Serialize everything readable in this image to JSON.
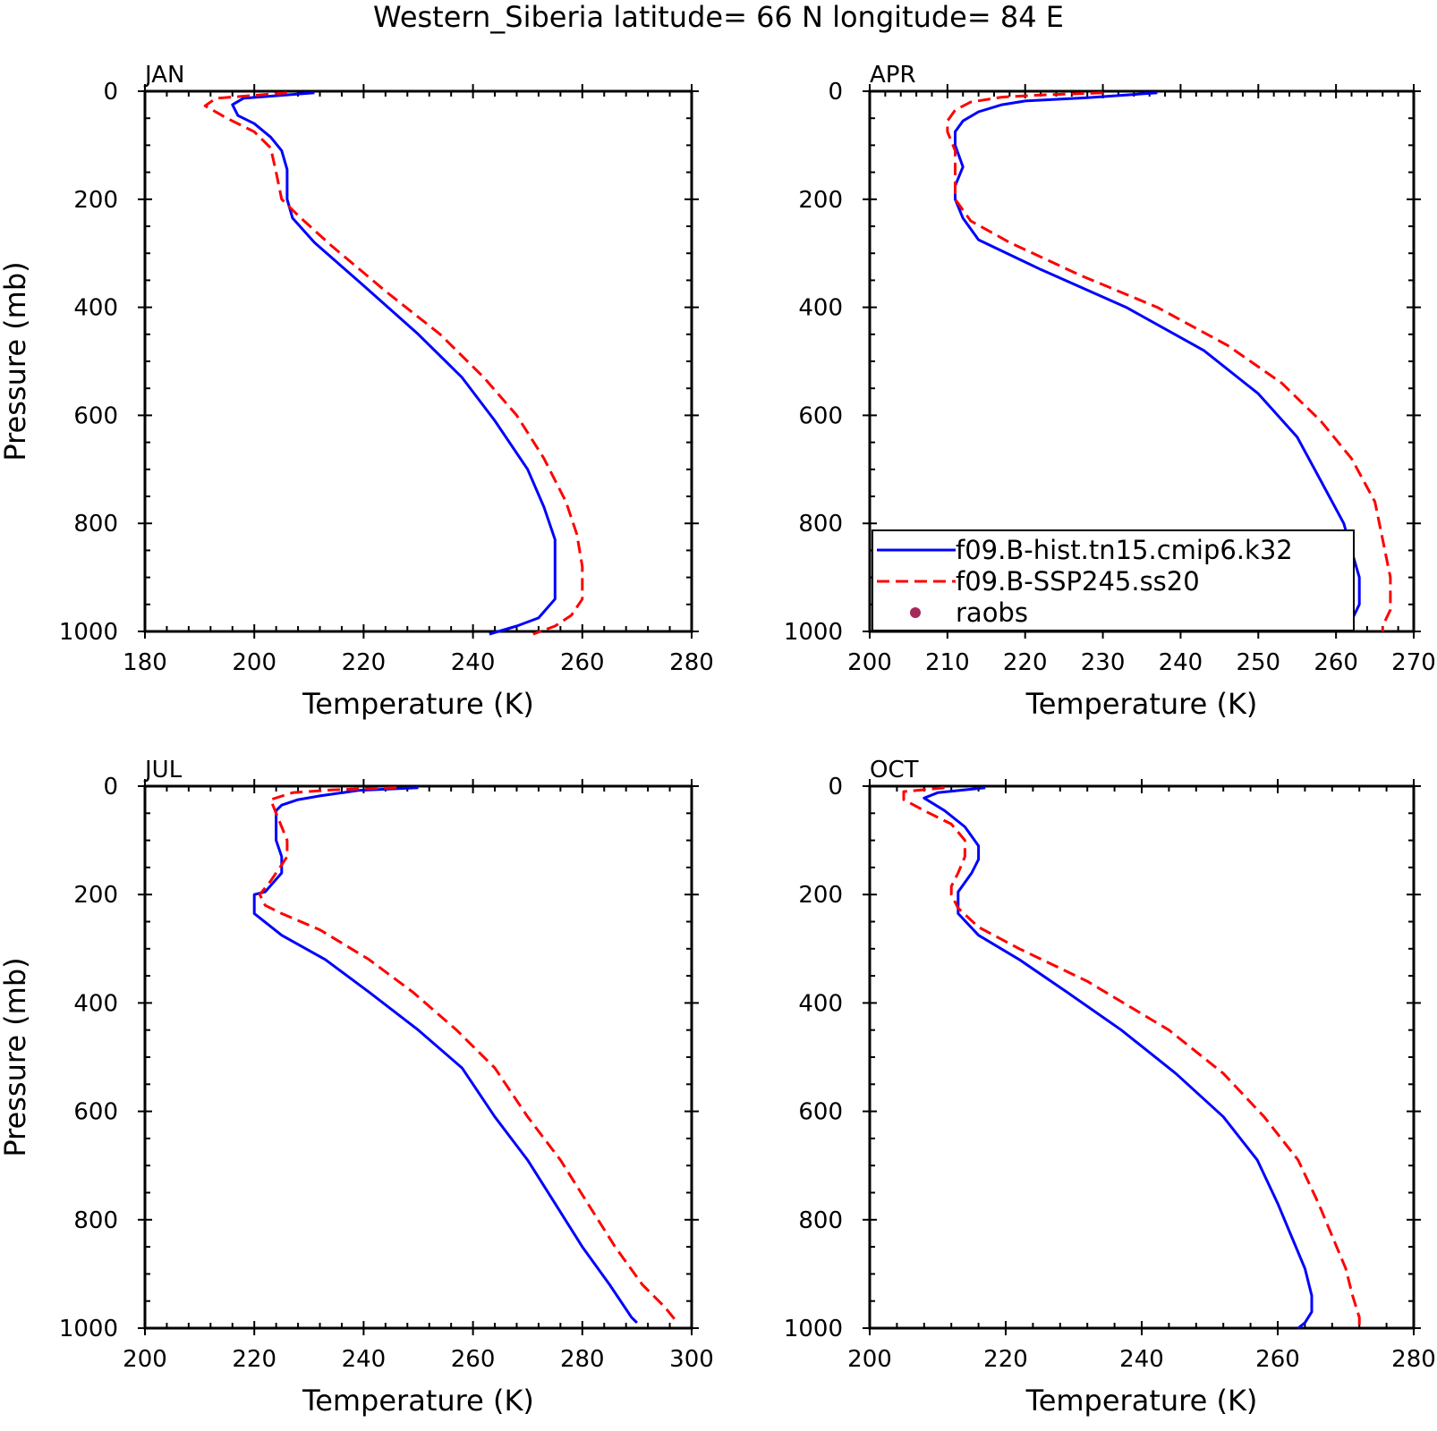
{
  "title": "Western_Siberia  latitude= 66 N longitude= 84 E",
  "chart_data": [
    {
      "type": "line",
      "panel_label": "JAN",
      "xlabel": "Temperature (K)",
      "ylabel": "Pressure (mb)",
      "xlim": [
        180,
        280
      ],
      "ylim": [
        0,
        1000
      ],
      "y_inverted": true,
      "x_ticks": [
        180,
        200,
        220,
        240,
        260,
        280
      ],
      "y_ticks": [
        0,
        200,
        400,
        600,
        800,
        1000
      ],
      "series": [
        {
          "name": "f09.B-hist.tn15.cmip6.k32",
          "color": "#0000ff",
          "dash": "solid",
          "points": [
            [
              211,
              3
            ],
            [
              198,
              13
            ],
            [
              196,
              25
            ],
            [
              197,
              45
            ],
            [
              200,
              60
            ],
            [
              203,
              85
            ],
            [
              205,
              110
            ],
            [
              206,
              145
            ],
            [
              206,
              200
            ],
            [
              207,
              235
            ],
            [
              211,
              280
            ],
            [
              220,
              360
            ],
            [
              230,
              450
            ],
            [
              238,
              530
            ],
            [
              244,
              610
            ],
            [
              250,
              700
            ],
            [
              253,
              770
            ],
            [
              255,
              830
            ],
            [
              255,
              900
            ],
            [
              255,
              940
            ],
            [
              252,
              975
            ],
            [
              248,
              990
            ],
            [
              243,
              1005
            ]
          ]
        },
        {
          "name": "f09.B-SSP245.ss20",
          "color": "#ff0000",
          "dash": "dashed",
          "points": [
            [
              206,
              3
            ],
            [
              193,
              13
            ],
            [
              191,
              27
            ],
            [
              195,
              50
            ],
            [
              200,
              75
            ],
            [
              203,
              105
            ],
            [
              204,
              150
            ],
            [
              205,
              200
            ],
            [
              208,
              230
            ],
            [
              214,
              285
            ],
            [
              224,
              370
            ],
            [
              234,
              450
            ],
            [
              242,
              530
            ],
            [
              248,
              600
            ],
            [
              253,
              680
            ],
            [
              257,
              760
            ],
            [
              259,
              820
            ],
            [
              260,
              880
            ],
            [
              260,
              940
            ],
            [
              258,
              970
            ],
            [
              255,
              990
            ],
            [
              251,
              1005
            ]
          ]
        }
      ]
    },
    {
      "type": "line",
      "panel_label": "APR",
      "xlabel": "Temperature (K)",
      "ylabel": "",
      "xlim": [
        200,
        270
      ],
      "ylim": [
        0,
        1000
      ],
      "y_inverted": true,
      "x_ticks": [
        200,
        210,
        220,
        230,
        240,
        250,
        260,
        270
      ],
      "y_ticks": [
        0,
        200,
        400,
        600,
        800,
        1000
      ],
      "legend_position": "bottom-left",
      "legend": [
        {
          "label": "f09.B-hist.tn15.cmip6.k32",
          "color": "#0000ff",
          "marker": "solid-line"
        },
        {
          "label": "f09.B-SSP245.ss20",
          "color": "#ff0000",
          "marker": "dashed-line"
        },
        {
          "label": "raobs",
          "color": "#a52a5a",
          "marker": "dot"
        }
      ],
      "series": [
        {
          "name": "f09.B-hist.tn15.cmip6.k32",
          "color": "#0000ff",
          "dash": "solid",
          "points": [
            [
              237,
              3
            ],
            [
              228,
              12
            ],
            [
              220,
              18
            ],
            [
              217,
              25
            ],
            [
              214,
              38
            ],
            [
              212,
              55
            ],
            [
              211,
              75
            ],
            [
              211,
              100
            ],
            [
              212,
              140
            ],
            [
              211,
              175
            ],
            [
              211,
              200
            ],
            [
              212,
              235
            ],
            [
              214,
              275
            ],
            [
              222,
              330
            ],
            [
              233,
              400
            ],
            [
              243,
              480
            ],
            [
              250,
              560
            ],
            [
              255,
              640
            ],
            [
              258,
              720
            ],
            [
              261,
              800
            ],
            [
              262,
              850
            ],
            [
              263,
              900
            ],
            [
              263,
              950
            ],
            [
              262,
              980
            ],
            [
              262,
              1000
            ]
          ]
        },
        {
          "name": "f09.B-SSP245.ss20",
          "color": "#ff0000",
          "dash": "dashed",
          "points": [
            [
              230,
              3
            ],
            [
              222,
              7
            ],
            [
              217,
              11
            ],
            [
              213,
              20
            ],
            [
              211,
              35
            ],
            [
              210,
              55
            ],
            [
              210,
              75
            ],
            [
              211,
              110
            ],
            [
              211,
              150
            ],
            [
              211,
              200
            ],
            [
              213,
              240
            ],
            [
              218,
              280
            ],
            [
              227,
              340
            ],
            [
              237,
              400
            ],
            [
              246,
              470
            ],
            [
              253,
              540
            ],
            [
              258,
              610
            ],
            [
              262,
              680
            ],
            [
              265,
              760
            ],
            [
              266,
              830
            ],
            [
              267,
              900
            ],
            [
              267,
              960
            ],
            [
              266,
              990
            ],
            [
              266,
              1000
            ]
          ]
        }
      ]
    },
    {
      "type": "line",
      "panel_label": "JUL",
      "xlabel": "Temperature (K)",
      "ylabel": "Pressure (mb)",
      "xlim": [
        200,
        300
      ],
      "ylim": [
        0,
        1000
      ],
      "y_inverted": true,
      "x_ticks": [
        200,
        220,
        240,
        260,
        280,
        300
      ],
      "y_ticks": [
        0,
        200,
        400,
        600,
        800,
        1000
      ],
      "series": [
        {
          "name": "f09.B-hist.tn15.cmip6.k32",
          "color": "#0000ff",
          "dash": "solid",
          "points": [
            [
              250,
              3
            ],
            [
              239,
              8
            ],
            [
              232,
              18
            ],
            [
              228,
              25
            ],
            [
              225,
              35
            ],
            [
              224,
              45
            ],
            [
              224,
              60
            ],
            [
              224,
              100
            ],
            [
              225,
              130
            ],
            [
              225,
              160
            ],
            [
              222,
              195
            ],
            [
              220,
              200
            ],
            [
              220,
              235
            ],
            [
              225,
              275
            ],
            [
              233,
              320
            ],
            [
              241,
              380
            ],
            [
              250,
              450
            ],
            [
              258,
              520
            ],
            [
              264,
              610
            ],
            [
              270,
              690
            ],
            [
              275,
              770
            ],
            [
              280,
              850
            ],
            [
              285,
              920
            ],
            [
              289,
              980
            ],
            [
              290,
              990
            ]
          ]
        },
        {
          "name": "f09.B-SSP245.ss20",
          "color": "#ff0000",
          "dash": "dashed",
          "points": [
            [
              246,
              3
            ],
            [
              234,
              7
            ],
            [
              227,
              12
            ],
            [
              223,
              25
            ],
            [
              224,
              50
            ],
            [
              225,
              75
            ],
            [
              226,
              100
            ],
            [
              226,
              130
            ],
            [
              225,
              145
            ],
            [
              223,
              175
            ],
            [
              221,
              200
            ],
            [
              222,
              220
            ],
            [
              225,
              235
            ],
            [
              232,
              265
            ],
            [
              241,
              320
            ],
            [
              249,
              380
            ],
            [
              257,
              450
            ],
            [
              264,
              520
            ],
            [
              270,
              610
            ],
            [
              276,
              690
            ],
            [
              281,
              770
            ],
            [
              286,
              850
            ],
            [
              291,
              920
            ],
            [
              295,
              960
            ],
            [
              297,
              985
            ]
          ]
        }
      ]
    },
    {
      "type": "line",
      "panel_label": "OCT",
      "xlabel": "Temperature (K)",
      "ylabel": "",
      "xlim": [
        200,
        280
      ],
      "ylim": [
        0,
        1000
      ],
      "y_inverted": true,
      "x_ticks": [
        200,
        220,
        240,
        260,
        280
      ],
      "y_ticks": [
        0,
        200,
        400,
        600,
        800,
        1000
      ],
      "series": [
        {
          "name": "f09.B-hist.tn15.cmip6.k32",
          "color": "#0000ff",
          "dash": "solid",
          "points": [
            [
              217,
              3
            ],
            [
              210,
              12
            ],
            [
              208,
              22
            ],
            [
              211,
              45
            ],
            [
              214,
              75
            ],
            [
              216,
              110
            ],
            [
              216,
              135
            ],
            [
              215,
              160
            ],
            [
              213,
              195
            ],
            [
              213,
              235
            ],
            [
              216,
              275
            ],
            [
              222,
              320
            ],
            [
              229,
              380
            ],
            [
              237,
              450
            ],
            [
              245,
              530
            ],
            [
              252,
              610
            ],
            [
              257,
              690
            ],
            [
              260,
              770
            ],
            [
              262,
              830
            ],
            [
              264,
              890
            ],
            [
              265,
              940
            ],
            [
              265,
              970
            ],
            [
              264,
              990
            ],
            [
              263,
              1000
            ]
          ]
        },
        {
          "name": "f09.B-SSP245.ss20",
          "color": "#ff0000",
          "dash": "dashed",
          "points": [
            [
              211,
              3
            ],
            [
              205,
              10
            ],
            [
              205,
              25
            ],
            [
              208,
              45
            ],
            [
              212,
              70
            ],
            [
              214,
              100
            ],
            [
              214,
              130
            ],
            [
              213,
              160
            ],
            [
              212,
              185
            ],
            [
              212,
              200
            ],
            [
              213,
              225
            ],
            [
              216,
              260
            ],
            [
              222,
              300
            ],
            [
              232,
              360
            ],
            [
              244,
              450
            ],
            [
              252,
              530
            ],
            [
              258,
              610
            ],
            [
              263,
              690
            ],
            [
              266,
              770
            ],
            [
              268,
              830
            ],
            [
              270,
              890
            ],
            [
              271,
              940
            ],
            [
              272,
              980
            ],
            [
              272,
              1000
            ]
          ]
        }
      ]
    }
  ]
}
